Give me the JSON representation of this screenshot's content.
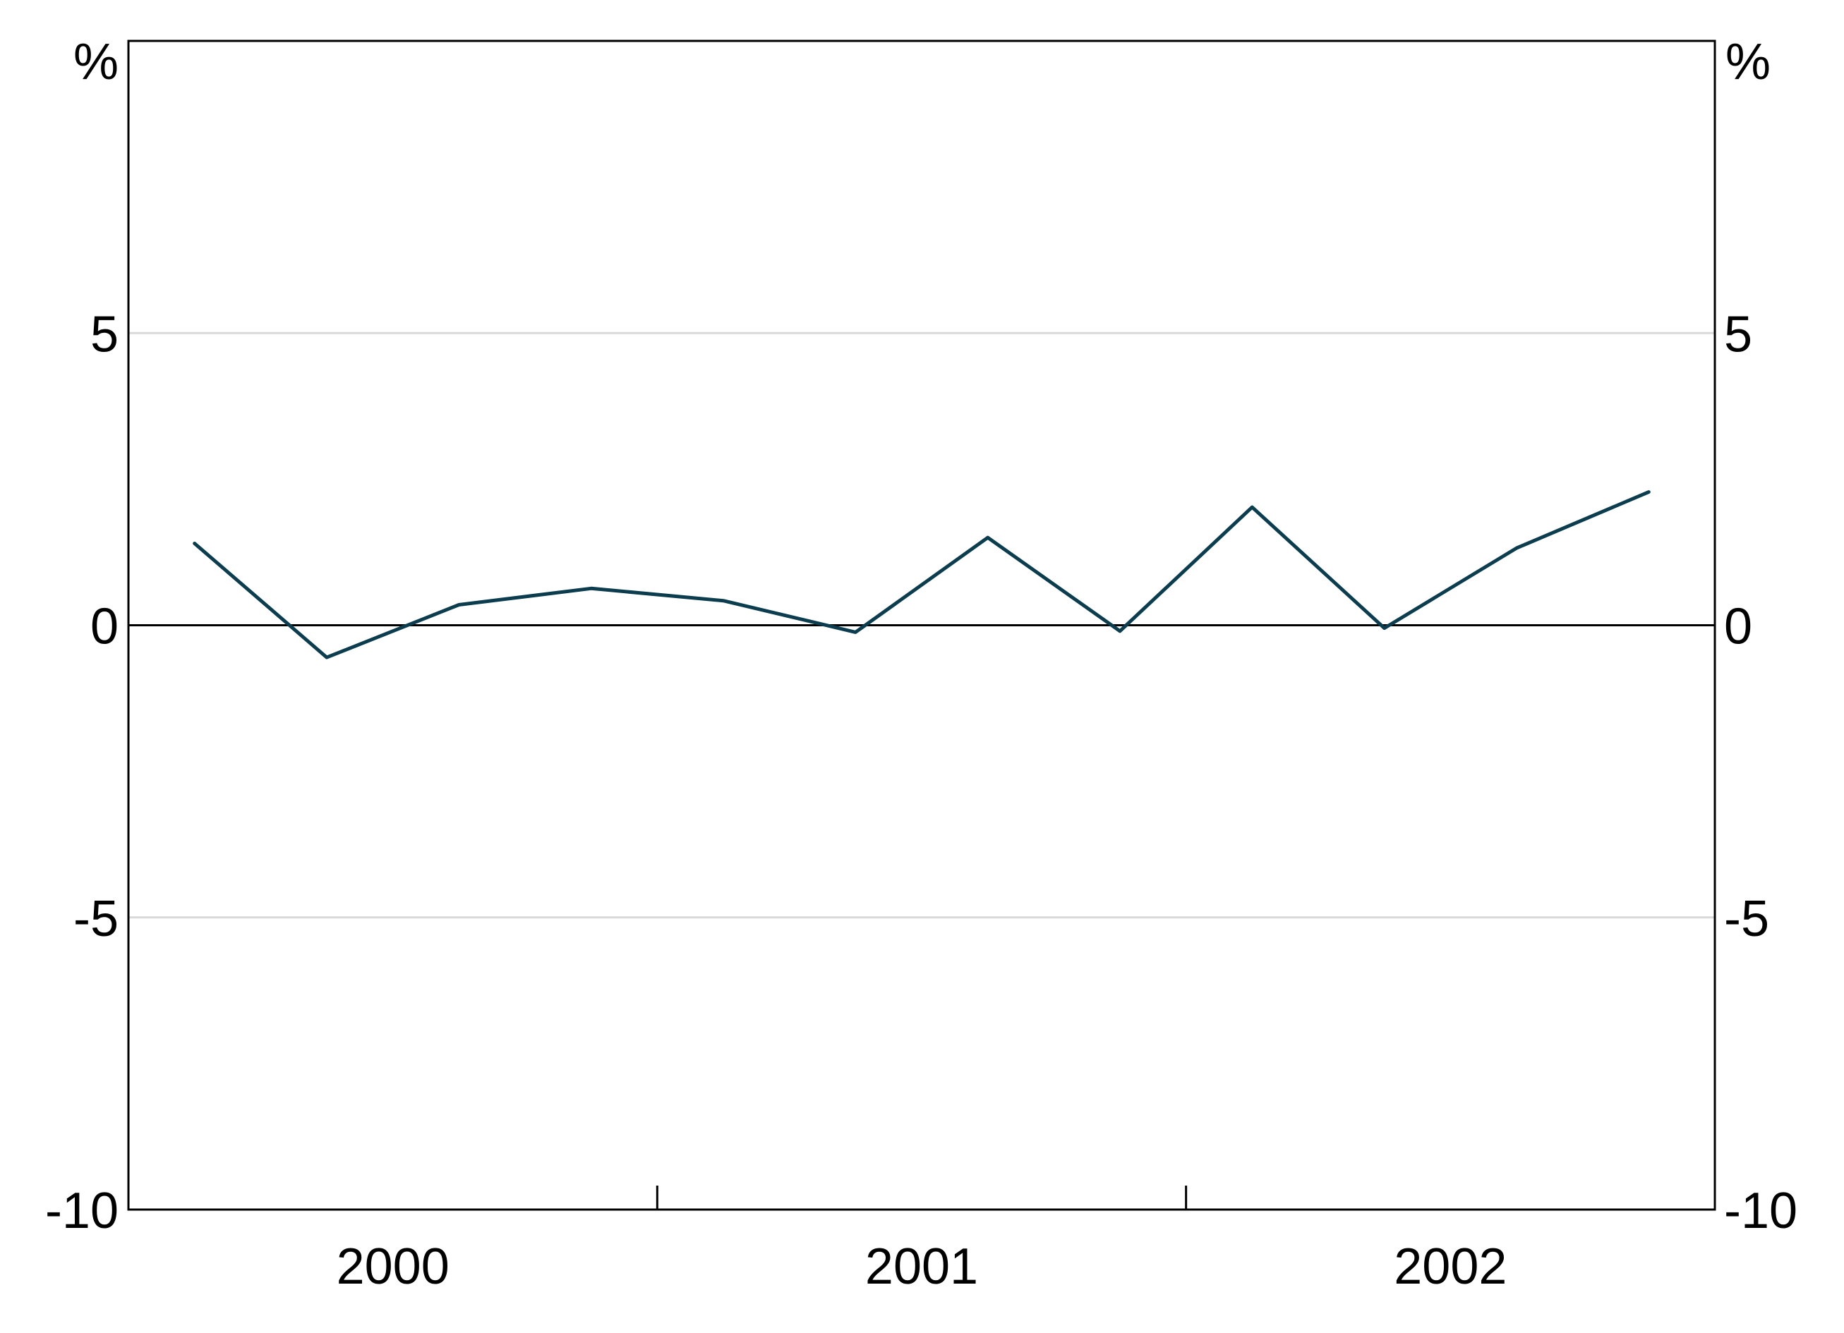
{
  "chart_data": {
    "type": "line",
    "title": "",
    "xlabel": "",
    "ylabel": "",
    "unit_left": "%",
    "unit_right": "%",
    "ylim": [
      -10,
      10
    ],
    "yticks": [
      {
        "value": 5,
        "label": "5"
      },
      {
        "value": 0,
        "label": "0"
      },
      {
        "value": -5,
        "label": "-5"
      },
      {
        "value": -10,
        "label": "-10"
      }
    ],
    "grid": true,
    "x_categories": [
      "2000",
      "2001",
      "2002"
    ],
    "x_period_ticks": 12,
    "series": [
      {
        "color": "#0b3d4f",
        "x": [
          "Q1 2000",
          "Q2 2000",
          "Q3 2000",
          "Q4 2000",
          "Q1 2001",
          "Q2 2001",
          "Q3 2001",
          "Q4 2001",
          "Q1 2002",
          "Q2 2002",
          "Q3 2002",
          "Q4 2002"
        ],
        "values": [
          1.4,
          -0.55,
          0.35,
          0.63,
          0.42,
          -0.12,
          1.5,
          -0.1,
          2.02,
          -0.05,
          1.32,
          2.28
        ]
      }
    ],
    "colors": {
      "line": "#0b3d4f",
      "grid": "#d9d9d9",
      "axis": "#000000"
    }
  }
}
